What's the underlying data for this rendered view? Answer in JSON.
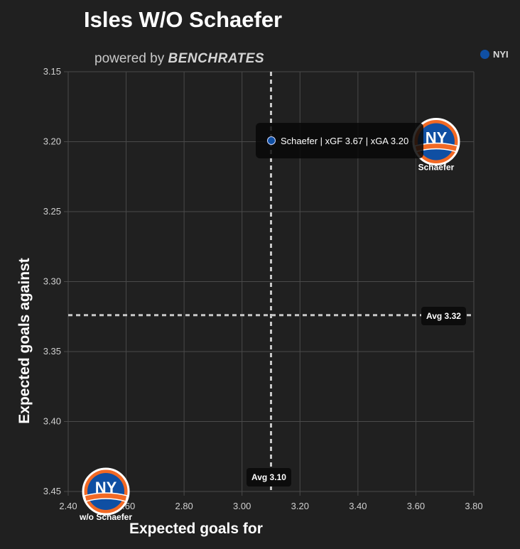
{
  "header": {
    "title": "Isles W/O Schaefer",
    "powered_prefix": "powered by",
    "powered_brand": "BENCHRATES"
  },
  "legend": {
    "label": "NYI",
    "color": "#0f4fa3"
  },
  "colors": {
    "background": "#202020",
    "grid": "#4a4a4a",
    "avg_line": "#c8c8c8",
    "team_blue": "#0f4fa3",
    "team_orange": "#f26924"
  },
  "tooltip": {
    "text": "Schaefer | xGF 3.67 | xGA 3.20"
  },
  "chart_data": {
    "type": "scatter",
    "title": "Isles W/O Schaefer",
    "xlabel": "Expected goals for",
    "ylabel": "Expected goals against",
    "xlim": [
      2.4,
      3.8
    ],
    "ylim": [
      3.45,
      3.15
    ],
    "y_inverted": true,
    "x_ticks": [
      "2.40",
      "2.60",
      "2.80",
      "3.00",
      "3.20",
      "3.40",
      "3.60",
      "3.80"
    ],
    "y_ticks": [
      "3.15",
      "3.20",
      "3.25",
      "3.30",
      "3.35",
      "3.40",
      "3.45"
    ],
    "grid": true,
    "legend_position": "top-right",
    "points": [
      {
        "label": "Schaefer",
        "x": 3.67,
        "y": 3.2
      },
      {
        "label": "w/o Schaefer",
        "x": 2.53,
        "y": 3.45
      }
    ],
    "avg_x": {
      "value": 3.1,
      "label": "Avg 3.10"
    },
    "avg_y": {
      "value": 3.324,
      "label": "Avg 3.32"
    },
    "logo_text": "NY"
  }
}
